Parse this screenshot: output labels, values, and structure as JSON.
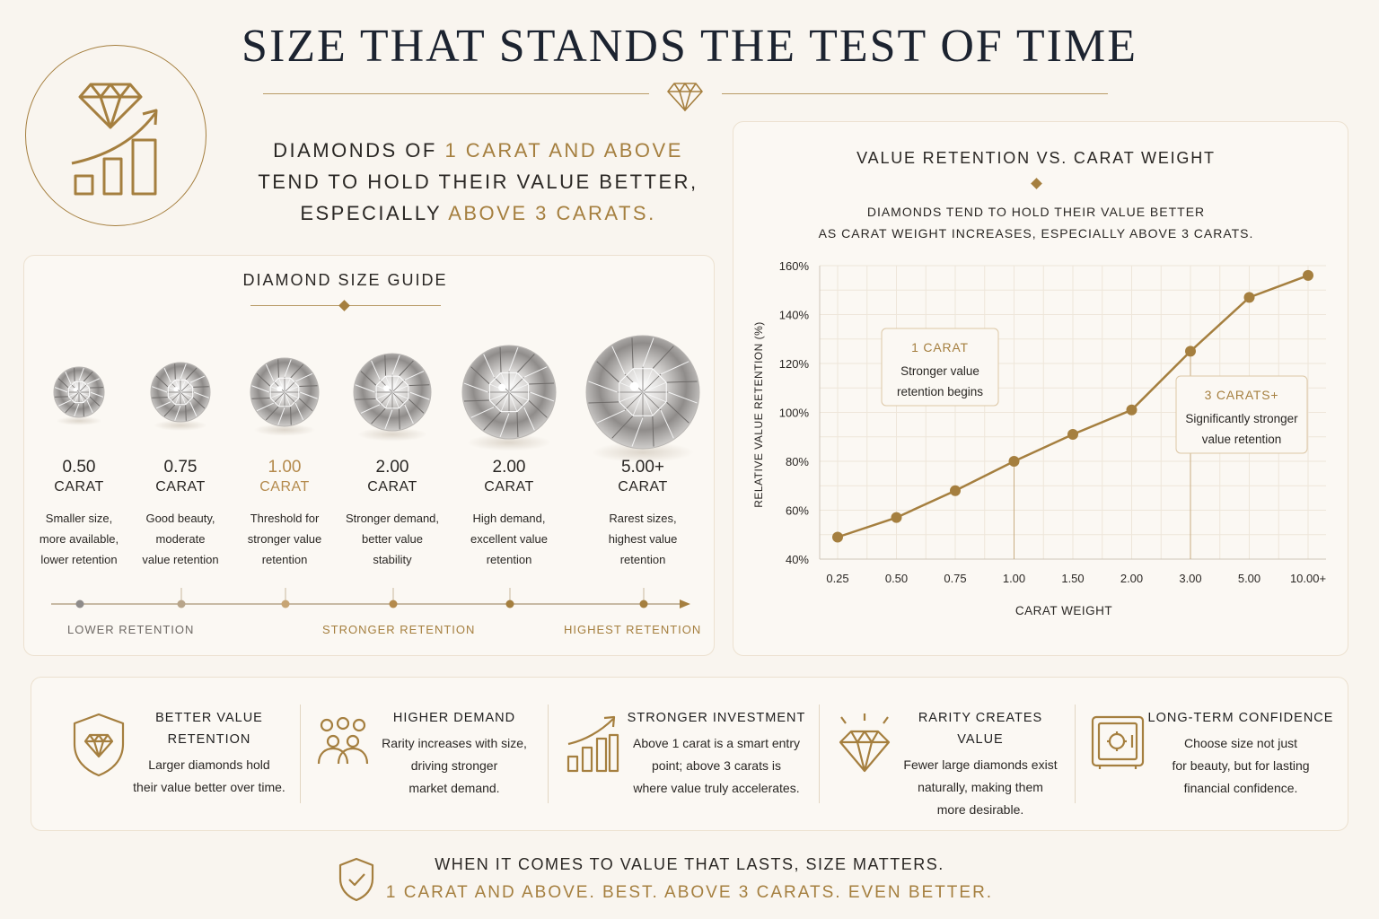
{
  "header": {
    "title": "SIZE THAT STANDS THE TEST OF TIME"
  },
  "hero": {
    "line1_pre": "DIAMONDS OF ",
    "line1_hl": "1 CARAT AND ABOVE",
    "line2": "TEND TO HOLD THEIR VALUE BETTER,",
    "line3_pre": "ESPECIALLY ",
    "line3_hl": "ABOVE 3 CARATS."
  },
  "size_guide": {
    "title": "DIAMOND SIZE GUIDE",
    "gems": [
      {
        "value": "0.50",
        "unit": "CARAT",
        "desc": [
          "Smaller size,",
          "more available,",
          "lower retention"
        ],
        "highlight": false
      },
      {
        "value": "0.75",
        "unit": "CARAT",
        "desc": [
          "Good beauty,",
          "moderate",
          "value retention"
        ],
        "highlight": false
      },
      {
        "value": "1.00",
        "unit": "CARAT",
        "desc": [
          "Threshold for",
          "stronger value",
          "retention"
        ],
        "highlight": true
      },
      {
        "value": "2.00",
        "unit": "CARAT",
        "desc": [
          "Stronger demand,",
          "better value",
          "stability"
        ],
        "highlight": false
      },
      {
        "value": "2.00",
        "unit": "CARAT",
        "desc": [
          "High demand,",
          "excellent value",
          "retention"
        ],
        "highlight": false
      },
      {
        "value": "5.00+",
        "unit": "CARAT",
        "desc": [
          "Rarest sizes,",
          "highest value",
          "retention"
        ],
        "highlight": false
      }
    ],
    "scale": {
      "low": "LOWER RETENTION",
      "mid": "STRONGER RETENTION",
      "high": "HIGHEST RETENTION"
    }
  },
  "chart_data": {
    "type": "line",
    "title": "VALUE RETENTION VS. CARAT WEIGHT",
    "subtitle": [
      "DIAMONDS TEND TO HOLD THEIR VALUE BETTER",
      "AS CARAT WEIGHT INCREASES, ESPECIALLY ABOVE 3 CARATS."
    ],
    "xlabel": "CARAT WEIGHT",
    "ylabel": "RELATIVE VALUE RETENTION (%)",
    "categories": [
      "0.25",
      "0.50",
      "0.75",
      "1.00",
      "1.50",
      "2.00",
      "3.00",
      "5.00",
      "10.00+"
    ],
    "values": [
      49,
      57,
      68,
      80,
      91,
      101,
      125,
      147,
      156
    ],
    "ylim": [
      40,
      160
    ],
    "yticks": [
      40,
      60,
      80,
      100,
      120,
      140,
      160
    ],
    "ytick_suffix": "%",
    "grid": true,
    "color": "#a57f3f",
    "annotations": [
      {
        "at": "1.00",
        "title": "1 CARAT",
        "lines": [
          "Stronger value",
          "retention begins"
        ]
      },
      {
        "at": "3.00",
        "title": "3 CARATS+",
        "lines": [
          "Significantly stronger",
          "value retention"
        ]
      }
    ]
  },
  "benefits": [
    {
      "icon": "shield-diamond-icon",
      "title": [
        "BETTER VALUE",
        "RETENTION"
      ],
      "desc": [
        "Larger diamonds hold",
        "their value better over time."
      ]
    },
    {
      "icon": "people-group-icon",
      "title": [
        "HIGHER DEMAND"
      ],
      "desc": [
        "Rarity increases with size,",
        "driving stronger",
        "market demand."
      ]
    },
    {
      "icon": "growth-chart-icon",
      "title": [
        "STRONGER INVESTMENT"
      ],
      "desc": [
        "Above 1 carat is a smart entry",
        "point; above 3 carats is",
        "where value truly accelerates."
      ]
    },
    {
      "icon": "sparkling-diamond-icon",
      "title": [
        "RARITY CREATES VALUE"
      ],
      "desc": [
        "Fewer large diamonds exist",
        "naturally, making them",
        "more desirable."
      ]
    },
    {
      "icon": "safe-icon",
      "title": [
        "LONG-TERM CONFIDENCE"
      ],
      "desc": [
        "Choose size not just",
        "for beauty, but for lasting",
        "financial confidence."
      ]
    }
  ],
  "footer": {
    "line1": "WHEN IT COMES TO VALUE THAT LASTS, SIZE MATTERS.",
    "line2": "1 CARAT AND ABOVE. BEST. ABOVE 3 CARATS. EVEN BETTER."
  }
}
